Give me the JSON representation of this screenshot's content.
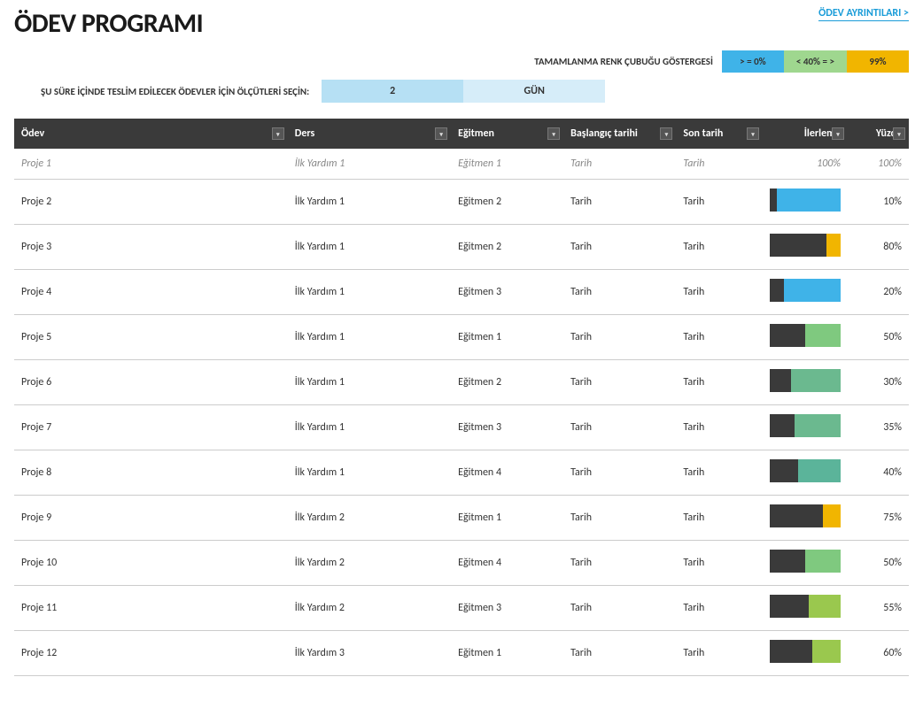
{
  "header": {
    "title": "ÖDEV PROGRAMI",
    "details_link": "ÖDEV AYRINTILARI >"
  },
  "legend": {
    "label": "TAMAMLANMA RENK ÇUBUĞU GÖSTERGESİ",
    "items": [
      {
        "text": "> = 0%",
        "bg": "#3fb3e8"
      },
      {
        "text": "< 40% = >",
        "bg": "#9fd78f"
      },
      {
        "text": "99%",
        "bg": "#f1b500"
      }
    ]
  },
  "criteria": {
    "label": "ŞU SÜRE İÇİNDE TESLİM EDİLECEK ÖDEVLER İÇİN ÖLÇÜTLERİ SEÇİN:",
    "value": "2",
    "unit": "GÜN",
    "value_bg": "#b6e0f4",
    "unit_bg": "#d6edf9"
  },
  "table": {
    "columns": [
      {
        "key": "odev",
        "label": "Ödev",
        "class": "col-odev"
      },
      {
        "key": "ders",
        "label": "Ders",
        "class": "col-ders"
      },
      {
        "key": "egitmen",
        "label": "Eğitmen",
        "class": "col-egitmen"
      },
      {
        "key": "baslangic",
        "label": "Başlangıç tarihi",
        "class": "col-baslangic"
      },
      {
        "key": "son",
        "label": "Son tarih",
        "class": "col-son"
      },
      {
        "key": "ilerleme",
        "label": "İlerleme",
        "class": "col-ilerleme",
        "align": "right"
      },
      {
        "key": "yuzde",
        "label": "Yüzde",
        "class": "col-yuzde",
        "align": "right"
      }
    ],
    "progress_colors": {
      "low": "#3fb3e8",
      "mid": "#7fc97f",
      "mid2": "#6bb98f",
      "mid3": "#9ac84e",
      "high": "#f1b500",
      "fill": "#3a3a3a"
    },
    "rows": [
      {
        "odev": "Proje 1",
        "ders": "İlk Yardım 1",
        "egitmen": "Eğitmen 1",
        "baslangic": "Tarih",
        "son": "Tarih",
        "percent": 100,
        "completed": true,
        "bar_bg": null
      },
      {
        "odev": "Proje 2",
        "ders": "İlk Yardım 1",
        "egitmen": "Eğitmen 2",
        "baslangic": "Tarih",
        "son": "Tarih",
        "percent": 10,
        "completed": false,
        "bar_bg": "#3fb3e8"
      },
      {
        "odev": "Proje 3",
        "ders": "İlk Yardım 1",
        "egitmen": "Eğitmen 2",
        "baslangic": "Tarih",
        "son": "Tarih",
        "percent": 80,
        "completed": false,
        "bar_bg": "#f1b500"
      },
      {
        "odev": "Proje 4",
        "ders": "İlk Yardım 1",
        "egitmen": "Eğitmen 3",
        "baslangic": "Tarih",
        "son": "Tarih",
        "percent": 20,
        "completed": false,
        "bar_bg": "#3fb3e8"
      },
      {
        "odev": "Proje 5",
        "ders": "İlk Yardım 1",
        "egitmen": "Eğitmen 1",
        "baslangic": "Tarih",
        "son": "Tarih",
        "percent": 50,
        "completed": false,
        "bar_bg": "#7fc97f"
      },
      {
        "odev": "Proje 6",
        "ders": "İlk Yardım 1",
        "egitmen": "Eğitmen 2",
        "baslangic": "Tarih",
        "son": "Tarih",
        "percent": 30,
        "completed": false,
        "bar_bg": "#6bb98f"
      },
      {
        "odev": "Proje 7",
        "ders": "İlk Yardım 1",
        "egitmen": "Eğitmen 3",
        "baslangic": "Tarih",
        "son": "Tarih",
        "percent": 35,
        "completed": false,
        "bar_bg": "#6bb98f"
      },
      {
        "odev": "Proje 8",
        "ders": "İlk Yardım 1",
        "egitmen": "Eğitmen 4",
        "baslangic": "Tarih",
        "son": "Tarih",
        "percent": 40,
        "completed": false,
        "bar_bg": "#5bb49a"
      },
      {
        "odev": "Proje 9",
        "ders": "İlk Yardım 2",
        "egitmen": "Eğitmen 1",
        "baslangic": "Tarih",
        "son": "Tarih",
        "percent": 75,
        "completed": false,
        "bar_bg": "#f1b500"
      },
      {
        "odev": "Proje 10",
        "ders": "İlk Yardım 2",
        "egitmen": "Eğitmen 4",
        "baslangic": "Tarih",
        "son": "Tarih",
        "percent": 50,
        "completed": false,
        "bar_bg": "#7fc97f"
      },
      {
        "odev": "Proje 11",
        "ders": "İlk Yardım 2",
        "egitmen": "Eğitmen 3",
        "baslangic": "Tarih",
        "son": "Tarih",
        "percent": 55,
        "completed": false,
        "bar_bg": "#9ac84e"
      },
      {
        "odev": "Proje 12",
        "ders": "İlk Yardım 3",
        "egitmen": "Eğitmen 1",
        "baslangic": "Tarih",
        "son": "Tarih",
        "percent": 60,
        "completed": false,
        "bar_bg": "#9ac84e"
      }
    ]
  }
}
